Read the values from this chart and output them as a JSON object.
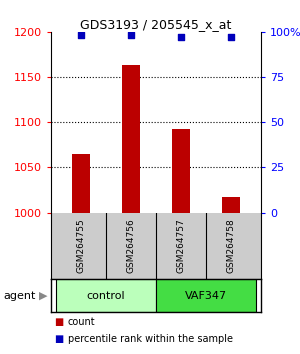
{
  "title": "GDS3193 / 205545_x_at",
  "samples": [
    "GSM264755",
    "GSM264756",
    "GSM264757",
    "GSM264758"
  ],
  "bar_values": [
    1065,
    1163,
    1093,
    1017
  ],
  "percentile_values": [
    98,
    98,
    97,
    97
  ],
  "ylim_left": [
    1000,
    1200
  ],
  "ylim_right": [
    0,
    100
  ],
  "yticks_left": [
    1000,
    1050,
    1100,
    1150,
    1200
  ],
  "yticks_right": [
    0,
    25,
    50,
    75,
    100
  ],
  "bar_color": "#bb0000",
  "dot_color": "#0000bb",
  "group_control_color": "#bbffbb",
  "group_vaf347_color": "#44dd44",
  "groups": [
    {
      "label": "control",
      "indices": [
        0,
        1
      ],
      "color": "#bbffbb"
    },
    {
      "label": "VAF347",
      "indices": [
        2,
        3
      ],
      "color": "#44dd44"
    }
  ],
  "group_label": "agent",
  "legend_items": [
    {
      "color": "#bb0000",
      "label": "count"
    },
    {
      "color": "#0000bb",
      "label": "percentile rank within the sample"
    }
  ]
}
